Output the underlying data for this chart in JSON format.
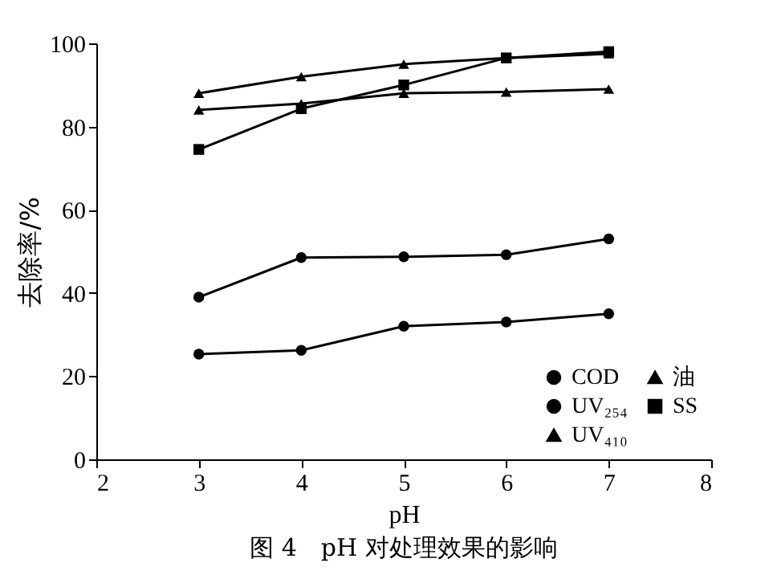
{
  "chart_data": {
    "type": "line",
    "title": "图 4　pH 对处理效果的影响",
    "xlabel": "pH",
    "ylabel": "去除率/%",
    "x": [
      3,
      4,
      5,
      6,
      7
    ],
    "xlim": [
      2,
      8
    ],
    "xticks": [
      2,
      3,
      4,
      5,
      6,
      7,
      8
    ],
    "ylim": [
      0,
      100
    ],
    "yticks": [
      0,
      20,
      40,
      60,
      80,
      100
    ],
    "grid": false,
    "legend": "bottom right",
    "line_style": "solid",
    "series": [
      {
        "name": "COD",
        "color": "#000000",
        "marker": "circle",
        "values": [
          25.3,
          26.2,
          32,
          33,
          35
        ]
      },
      {
        "name": "UV₂₅₄",
        "color": "#000000",
        "marker": "circle",
        "values": [
          39,
          48.5,
          48.7,
          49.2,
          53
        ]
      },
      {
        "name": "UV₄₁₀",
        "color": "#000000",
        "marker": "triangle",
        "values": [
          88,
          92,
          95,
          96.5,
          97.5
        ]
      },
      {
        "name": "油",
        "color": "#000000",
        "marker": "triangle",
        "values": [
          84,
          85.5,
          88,
          88.3,
          89
        ]
      },
      {
        "name": "SS",
        "color": "#000000",
        "marker": "square",
        "values": [
          74.5,
          84.3,
          90,
          96.5,
          98
        ]
      }
    ]
  }
}
